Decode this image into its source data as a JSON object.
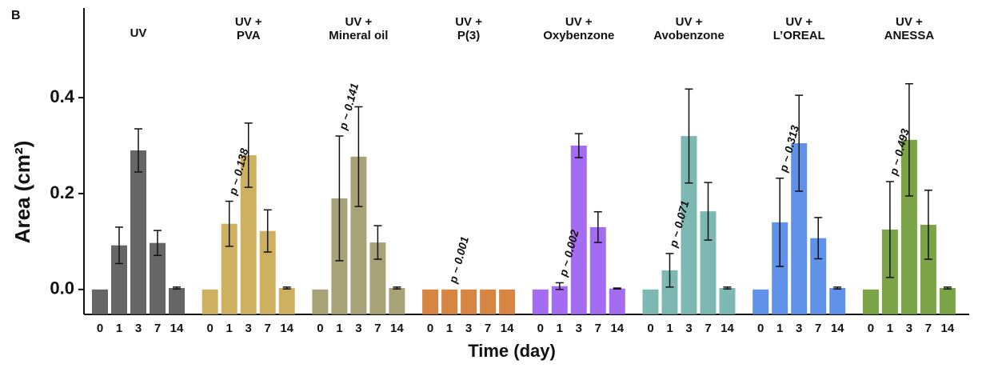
{
  "chart_data": {
    "type": "bar",
    "panel_label": "B",
    "xlabel": "Time (day)",
    "ylabel": "Area (cm²)",
    "categories": [
      "0",
      "1",
      "3",
      "7",
      "14"
    ],
    "ylim": [
      -0.052,
      0.587
    ],
    "yticks": [
      {
        "value": 0,
        "label": "0.0"
      },
      0.2,
      0.4
    ],
    "series": [
      {
        "name": [
          "UV"
        ],
        "color": "#555555",
        "values": [
          0,
          0.092,
          0.29,
          0.097,
          0.003
        ],
        "errors": [
          0,
          0.038,
          0.045,
          0.026,
          0.002
        ]
      },
      {
        "name": [
          "UV +",
          "PVA"
        ],
        "color": "#c9a94f",
        "values": [
          0,
          0.137,
          0.28,
          0.122,
          0.003
        ],
        "errors": [
          0,
          0.047,
          0.067,
          0.044,
          0.002
        ],
        "annotation": "p ~ 0.138"
      },
      {
        "name": [
          "UV +",
          "Mineral oil"
        ],
        "color": "#9e9868",
        "values": [
          0,
          0.19,
          0.277,
          0.098,
          0.003
        ],
        "errors": [
          0,
          0.13,
          0.104,
          0.035,
          0.002
        ],
        "annotation": "p ~ 0.141"
      },
      {
        "name": [
          "UV +",
          "P(3)"
        ],
        "color": "#d2782e",
        "values": [
          0,
          0,
          0,
          0,
          0
        ],
        "errors": [
          0,
          0,
          0,
          0,
          0
        ],
        "annotation": "p ~ 0.001"
      },
      {
        "name": [
          "UV +",
          "Oxybenzone"
        ],
        "color": "#9a5cf0",
        "values": [
          0,
          0.007,
          0.3,
          0.13,
          0.002
        ],
        "errors": [
          0,
          0.007,
          0.025,
          0.032,
          0.001
        ],
        "annotation": "p ~ 0.002"
      },
      {
        "name": [
          "UV +",
          "Avobenzone"
        ],
        "color": "#6fb0aa",
        "values": [
          0,
          0.04,
          0.32,
          0.163,
          0.003
        ],
        "errors": [
          0,
          0.035,
          0.098,
          0.06,
          0.002
        ],
        "annotation": "p ~ 0.071"
      },
      {
        "name": [
          "UV +",
          "L’OREAL"
        ],
        "color": "#4f86e8",
        "values": [
          0,
          0.14,
          0.305,
          0.107,
          0.003
        ],
        "errors": [
          0,
          0.092,
          0.1,
          0.043,
          0.002
        ],
        "annotation": "p ~ 0.313"
      },
      {
        "name": [
          "UV +",
          "ANESSA"
        ],
        "color": "#6c9a32",
        "values": [
          0,
          0.125,
          0.312,
          0.135,
          0.003
        ],
        "errors": [
          0,
          0.1,
          0.117,
          0.072,
          0.002
        ],
        "annotation": "p ~ 0.493"
      }
    ]
  }
}
